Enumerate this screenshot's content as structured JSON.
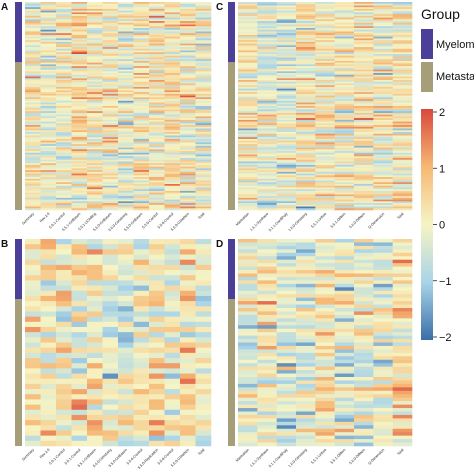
{
  "colors": {
    "myeloma": "#4b3f98",
    "metastasis": "#a59e78",
    "scale": [
      "#3b6ea8",
      "#a9d4e8",
      "#f6f4c4",
      "#f6b875",
      "#d9483b"
    ]
  },
  "legend": {
    "title": "Group",
    "groups": [
      "Myeloma",
      "Metastasis"
    ]
  },
  "chart_data": [
    {
      "type": "heatmap",
      "panel": "A",
      "columns": [
        "Summary",
        "Rev.2.0",
        "5.0.1-Control",
        "5.5.1-GrtBasen",
        "5.5.1-UChilling",
        "5.6.0-GrtBasen",
        "5.6.0-Gimsberg",
        "5.5.0-GrtBasen",
        "5.5.0-Control",
        "5.5.0-Control",
        "5.5.0-GMarken",
        "Total"
      ],
      "n_rows": 120,
      "myeloma_fraction": 0.29,
      "value_range": [
        -2,
        2
      ]
    },
    {
      "type": "heatmap",
      "panel": "B",
      "columns": [
        "Summary",
        "Rev.2.0",
        "5.0.1-Control",
        "5.5.1-Control",
        "5.5.1-GrtBasen",
        "5.6.0-Gimsberg",
        "5.5.0-GrtBasen",
        "5.5.0-Control",
        "5.5.0-Replication",
        "5.5.0-Control",
        "5.5.0-GMarken",
        "Total"
      ],
      "n_rows": 40,
      "myeloma_fraction": 0.29,
      "value_range": [
        -2,
        2
      ]
    },
    {
      "type": "heatmap",
      "panel": "C",
      "columns": [
        "Manhattan",
        "1.6.1-Synthase",
        "5.1.1-GardiPoly",
        "1.6.0-Gimsberg",
        "5.5.1-Lettice",
        "5.5.1-Differn",
        "5.6.0-Diffaen",
        "Q-Dimension",
        "Total"
      ],
      "n_rows": 120,
      "myeloma_fraction": 0.29,
      "value_range": [
        -2,
        2
      ]
    },
    {
      "type": "heatmap",
      "panel": "D",
      "columns": [
        "Manhattan",
        "1.6.1-Synthase",
        "5.1.1-GardiPoly",
        "1.6.0-Gimsberg",
        "5.5.1-Lettice",
        "5.5.1-Differn",
        "5.6.0-Diffaen",
        "Q-Dimension",
        "Total"
      ],
      "n_rows": 60,
      "myeloma_fraction": 0.29,
      "value_range": [
        -2,
        2
      ]
    }
  ],
  "colorbar": {
    "ticks": [
      "2",
      "1",
      "0",
      "−1",
      "−2"
    ],
    "tick_values": [
      2,
      1,
      0,
      -1,
      -2
    ]
  }
}
